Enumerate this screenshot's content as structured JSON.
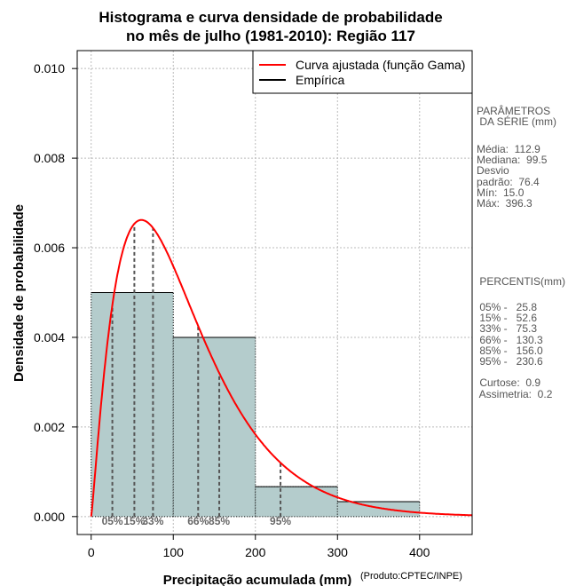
{
  "chart_data": {
    "type": "bar",
    "title_line1": "Histograma e curva densidade de probabilidade",
    "title_line2": "no mês de julho (1981-2010): Região 117",
    "xlabel": "Precipitação acumulada (mm)",
    "xlabel_note": "(Produto:CPTEC/INPE)",
    "ylabel": "Densidade de probabilidade",
    "xlim": [
      -17,
      464
    ],
    "ylim": [
      -0.0004,
      0.0104
    ],
    "xticks": [
      0,
      100,
      200,
      300,
      400
    ],
    "yticks": [
      "0.000",
      "0.002",
      "0.004",
      "0.006",
      "0.008",
      "0.010"
    ],
    "bins": [
      {
        "from": 0,
        "to": 100,
        "density": 0.005
      },
      {
        "from": 100,
        "to": 200,
        "density": 0.004
      },
      {
        "from": 200,
        "to": 300,
        "density": 0.000667
      },
      {
        "from": 300,
        "to": 400,
        "density": 0.000333
      }
    ],
    "gamma": {
      "mean": 112.9,
      "sd": 76.4
    },
    "percentile_markers": [
      {
        "label": "05%",
        "value": 25.8
      },
      {
        "label": "15%",
        "value": 52.6
      },
      {
        "label": "33%",
        "value": 75.3
      },
      {
        "label": "66%",
        "value": 130.3
      },
      {
        "label": "85%",
        "value": 156.0
      },
      {
        "label": "95%",
        "value": 230.6
      }
    ],
    "legend": [
      {
        "name": "Curva ajustada (função Gama)",
        "color": "#ff0000"
      },
      {
        "name": "Empírica",
        "color": "#000000"
      }
    ],
    "grid": true,
    "legend_position": "top-right",
    "bar_color": "#b4cccc"
  },
  "side": {
    "params_title": "PARÂMETROS\n DA SÉRIE (mm)",
    "params": "Média:  112.9\nMediana:  99.5\nDesvio\npadrão:  76.4\nMín:  15.0\nMáx:  396.3",
    "perc_title": " PERCENTIS(mm)",
    "percs": " 05% -   25.8\n 15% -   52.6\n 33% -   75.3\n 66% -   130.3\n 85% -   156.0\n 95% -   230.6\n\n Curtose:  0.9\n Assimetria:  0.2"
  }
}
